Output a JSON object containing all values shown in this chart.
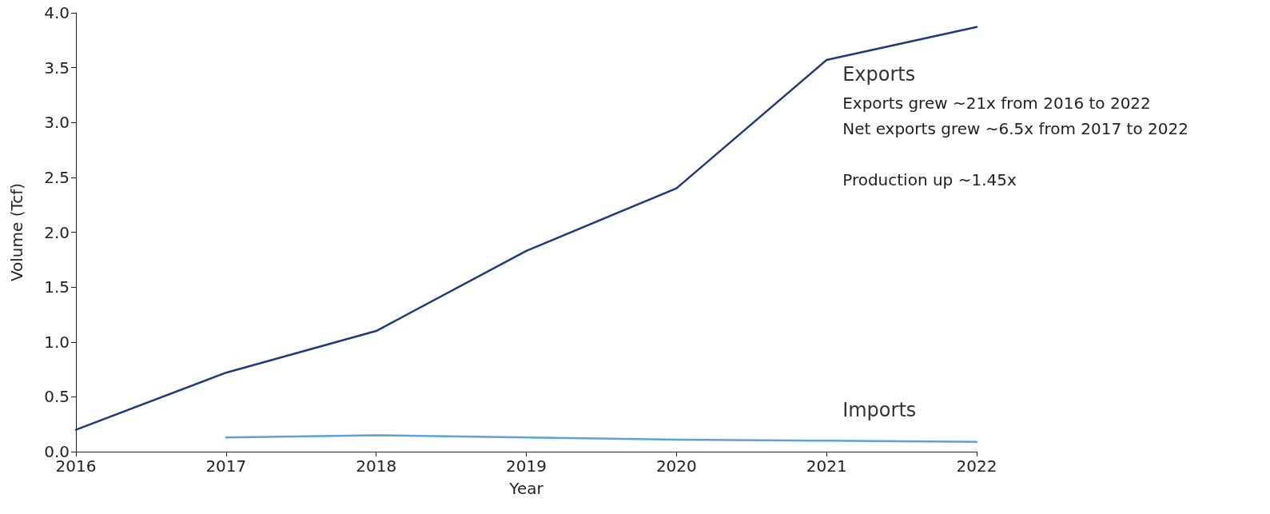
{
  "chart_data": {
    "type": "line",
    "xlabel": "Year",
    "ylabel": "Volume (Tcf)",
    "x": [
      2016,
      2017,
      2018,
      2019,
      2020,
      2021,
      2022
    ],
    "series": [
      {
        "name": "Exports",
        "color": "#1f3a7a",
        "values": [
          0.2,
          0.72,
          1.1,
          1.83,
          2.4,
          3.57,
          3.87
        ]
      },
      {
        "name": "Imports",
        "color": "#5ba3d6",
        "values": [
          null,
          0.13,
          0.15,
          0.13,
          0.11,
          0.1,
          0.09
        ]
      }
    ],
    "xlim": [
      2016,
      2022
    ],
    "xticks": [
      2016,
      2017,
      2018,
      2019,
      2020,
      2021,
      2022
    ],
    "ylim": [
      0,
      4
    ],
    "yticks": [
      {
        "value": 0,
        "label": "0.0"
      },
      0.5,
      {
        "value": 1,
        "label": "1.0"
      },
      1.5,
      {
        "value": 2,
        "label": "2.0"
      },
      2.5,
      {
        "value": 3,
        "label": "3.0"
      },
      3.5,
      {
        "value": 4,
        "label": "4.0"
      }
    ],
    "annotations": [
      "Exports grew ~21x from 2016 to 2022",
      "Net exports grew ~6.5x from 2017 to 2022",
      "Production up ~1.45x"
    ],
    "grid": false,
    "legend": false,
    "marker": "none",
    "line_style": "solid"
  }
}
